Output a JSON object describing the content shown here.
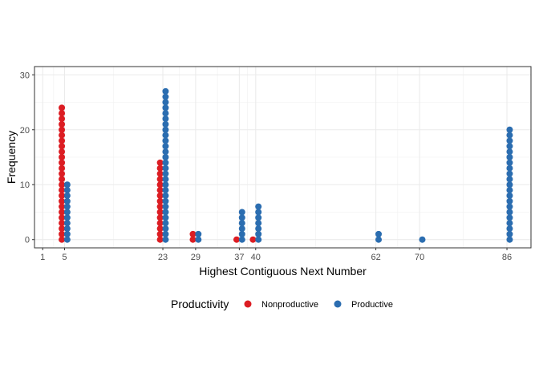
{
  "chart_data": {
    "type": "dot",
    "title": "",
    "xlabel": "Highest Contiguous Next Number",
    "ylabel": "Frequency",
    "xlim": [
      -0.5,
      90.4
    ],
    "ylim": [
      -1.5,
      31.5
    ],
    "x_ticks": [
      1,
      5,
      23,
      29,
      37,
      40,
      62,
      70,
      86
    ],
    "y_ticks": [
      0,
      10,
      20,
      30
    ],
    "grid": true,
    "legend": {
      "title": "Productivity",
      "position": "bottom"
    },
    "series": [
      {
        "name": "Nonproductive",
        "color": "#dc1d23",
        "offset": -0.5,
        "points": [
          {
            "x": 5,
            "count": 25
          },
          {
            "x": 23,
            "count": 15
          },
          {
            "x": 29,
            "count": 2
          },
          {
            "x": 37,
            "count": 1
          },
          {
            "x": 40,
            "count": 1
          }
        ]
      },
      {
        "name": "Productive",
        "color": "#2b6db0",
        "offset": 0.5,
        "points": [
          {
            "x": 5,
            "count": 11
          },
          {
            "x": 23,
            "count": 28
          },
          {
            "x": 29,
            "count": 2
          },
          {
            "x": 37,
            "count": 6
          },
          {
            "x": 40,
            "count": 7
          },
          {
            "x": 62,
            "count": 2
          },
          {
            "x": 70,
            "count": 1
          },
          {
            "x": 86,
            "count": 21
          }
        ]
      }
    ]
  }
}
